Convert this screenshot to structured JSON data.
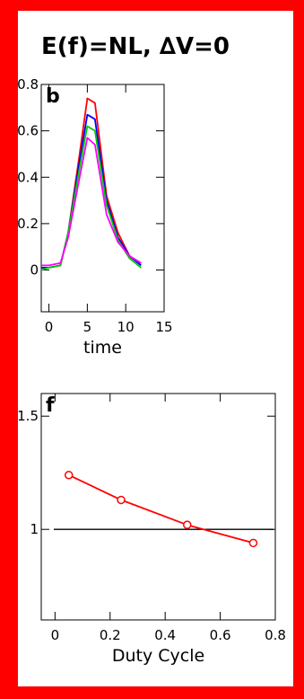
{
  "page": {
    "title": "E(f)=NL, ∆V=0",
    "frame_color": "#ff0000"
  },
  "chart_data": [
    {
      "type": "line",
      "panel_label": "b",
      "xlabel": "time",
      "ylabel": "",
      "xlim": [
        -1,
        15
      ],
      "ylim": [
        -0.18,
        0.8
      ],
      "xticks": [
        0,
        5,
        10,
        15
      ],
      "xtick_labels": [
        "0",
        "5",
        "10",
        "15"
      ],
      "yticks": [
        0,
        0.2,
        0.4,
        0.6,
        0.8
      ],
      "ytick_labels": [
        "0",
        "0.2",
        "0.4",
        "0.6",
        "0.8"
      ],
      "grid": false,
      "x": [
        -1,
        0,
        1.5,
        2.5,
        4,
        5,
        6,
        7.5,
        9,
        10.5,
        12
      ],
      "series": [
        {
          "color": "#ff0000",
          "values": [
            0.01,
            0.01,
            0.02,
            0.16,
            0.5,
            0.74,
            0.72,
            0.32,
            0.16,
            0.06,
            0.03
          ]
        },
        {
          "color": "#0000ff",
          "values": [
            0.01,
            0.01,
            0.02,
            0.16,
            0.47,
            0.67,
            0.65,
            0.3,
            0.14,
            0.06,
            0.02
          ]
        },
        {
          "color": "#00cc00",
          "values": [
            0.0,
            0.01,
            0.02,
            0.16,
            0.44,
            0.62,
            0.6,
            0.28,
            0.13,
            0.05,
            0.01
          ]
        },
        {
          "color": "#ff00ff",
          "values": [
            0.02,
            0.02,
            0.03,
            0.14,
            0.4,
            0.57,
            0.54,
            0.24,
            0.12,
            0.06,
            0.03
          ]
        }
      ]
    },
    {
      "type": "line",
      "panel_label": "f",
      "xlabel": "Duty Cycle",
      "ylabel": "",
      "xlim": [
        -0.05,
        0.8
      ],
      "ylim": [
        0.6,
        1.6
      ],
      "xticks": [
        0,
        0.2,
        0.4,
        0.6,
        0.8
      ],
      "xtick_labels": [
        "0",
        "0.2",
        "0.4",
        "0.6",
        "0.8"
      ],
      "yticks": [
        1,
        1.5
      ],
      "ytick_labels": [
        "1",
        "1.5"
      ],
      "grid": false,
      "reference_line": {
        "y": 1,
        "color": "#000000"
      },
      "series": [
        {
          "color": "#ff0000",
          "marker": "circle",
          "x": [
            0.05,
            0.24,
            0.48,
            0.72
          ],
          "values": [
            1.24,
            1.13,
            1.02,
            0.94
          ]
        }
      ]
    }
  ]
}
